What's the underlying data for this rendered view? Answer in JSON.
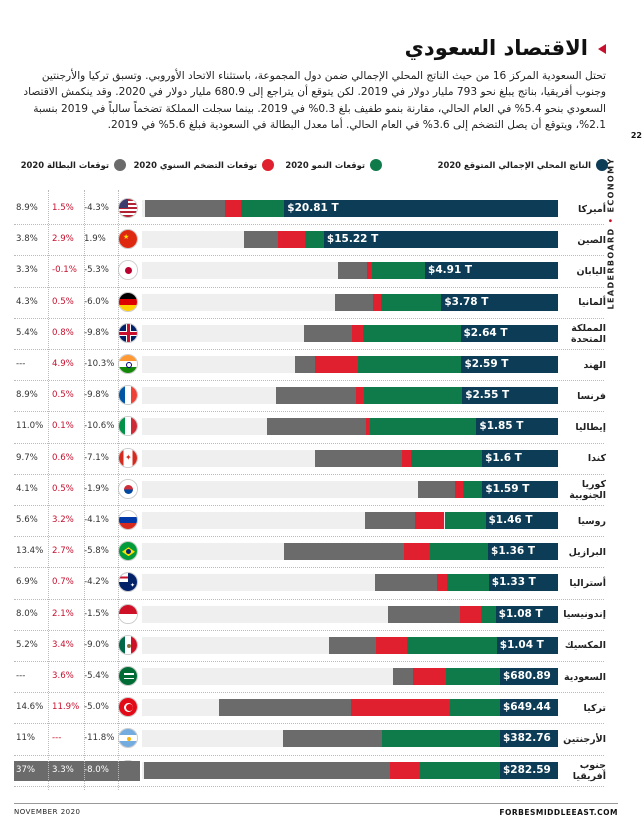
{
  "page": {
    "title": "الاقتصاد السعودي",
    "intro": "تحتل السعودية المركز 16 من حيث الناتج المحلي الإجمالي ضمن دول المجموعة، باستثناء الاتحاد الأوروبي. وتسبق تركيا والأرجنتين وجنوب أفريقيا، بناتج يبلغ نحو 793 مليار دولار في 2019. لكن يتوقع أن يتراجع إلى 680.9 مليار دولار في 2020. وقد ينكمش الاقتصاد السعودي بنحو 5.4% في العام الحالي، مقارنة بنمو طفيف بلغ 0.3% في 2019. بينما سجلت المملكة تضخماً سالباً في 2019 بنسبة 2.1%، ويتوقع أن يصل التضخم إلى 3.6% في العام الحالي. أما معدل البطالة في السعودية فبلغ 5.6% في 2019.",
    "page_number": "22",
    "side_label_left": "LEADERBOARD",
    "side_label_sep": "•",
    "side_label_right": "ECONOMY",
    "footer_left": "NOVEMBER 2020",
    "footer_right": "FORBESMIDDLEEAST.COM"
  },
  "legend": {
    "gdp": "الناتج المحلي الإجمالي المتوقع 2020",
    "growth": "توقعات النمو 2020",
    "inflation": "توقعات التضخم السنوي 2020",
    "unemployment": "توقعات البطالة 2020"
  },
  "colors": {
    "gdp": "#0d3d56",
    "growth": "#0f7a4a",
    "inflation": "#e0202f",
    "unemployment": "#6b6b6b",
    "accent": "#c8102e"
  },
  "chart_data": {
    "type": "bar",
    "columns": [
      "الناتج المحلي الإجمالي المتوقع 2020",
      "توقعات النمو 2020",
      "توقعات التضخم السنوي 2020",
      "توقعات البطالة 2020"
    ],
    "rows": [
      {
        "country": "أميركا",
        "flag": "us-flag-icon",
        "gdp": "$20.81 T",
        "growth": "-4.3%",
        "inflation": "1.5%",
        "unemployment": "8.9%"
      },
      {
        "country": "الصين",
        "flag": "china-flag-icon",
        "gdp": "$15.22 T",
        "growth": "1.9%",
        "inflation": "2.9%",
        "unemployment": "3.8%"
      },
      {
        "country": "اليابان",
        "flag": "japan-flag-icon",
        "gdp": "$4.91 T",
        "growth": "-5.3%",
        "inflation": "-0.1%",
        "unemployment": "3.3%"
      },
      {
        "country": "ألمانيا",
        "flag": "germany-flag-icon",
        "gdp": "$3.78 T",
        "growth": "-6.0%",
        "inflation": "0.5%",
        "unemployment": "4.3%"
      },
      {
        "country": "المملكة المتحدة",
        "flag": "uk-flag-icon",
        "gdp": "$2.64 T",
        "growth": "-9.8%",
        "inflation": "0.8%",
        "unemployment": "5.4%"
      },
      {
        "country": "الهند",
        "flag": "india-flag-icon",
        "gdp": "$2.59 T",
        "growth": "-10.3%",
        "inflation": "4.9%",
        "unemployment": "---"
      },
      {
        "country": "فرنسا",
        "flag": "france-flag-icon",
        "gdp": "$2.55 T",
        "growth": "-9.8%",
        "inflation": "0.5%",
        "unemployment": "8.9%"
      },
      {
        "country": "إيطاليا",
        "flag": "italy-flag-icon",
        "gdp": "$1.85 T",
        "growth": "-10.6%",
        "inflation": "0.1%",
        "unemployment": "11.0%"
      },
      {
        "country": "كندا",
        "flag": "canada-flag-icon",
        "gdp": "$1.6 T",
        "growth": "-7.1%",
        "inflation": "0.6%",
        "unemployment": "9.7%"
      },
      {
        "country": "كوريا الجنوبية",
        "flag": "korea-flag-icon",
        "gdp": "$1.59 T",
        "growth": "-1.9%",
        "inflation": "0.5%",
        "unemployment": "4.1%"
      },
      {
        "country": "روسيا",
        "flag": "russia-flag-icon",
        "gdp": "$1.46 T",
        "growth": "-4.1%",
        "inflation": "3.2%",
        "unemployment": "5.6%"
      },
      {
        "country": "البرازيل",
        "flag": "brazil-flag-icon",
        "gdp": "$1.36 T",
        "growth": "-5.8%",
        "inflation": "2.7%",
        "unemployment": "13.4%"
      },
      {
        "country": "أستراليا",
        "flag": "australia-flag-icon",
        "gdp": "$1.33 T",
        "growth": "-4.2%",
        "inflation": "0.7%",
        "unemployment": "6.9%"
      },
      {
        "country": "إندونيسيا",
        "flag": "indonesia-flag-icon",
        "gdp": "$1.08 T",
        "growth": "-1.5%",
        "inflation": "2.1%",
        "unemployment": "8.0%"
      },
      {
        "country": "المكسيك",
        "flag": "mexico-flag-icon",
        "gdp": "$1.04 T",
        "growth": "-9.0%",
        "inflation": "3.4%",
        "unemployment": "5.2%"
      },
      {
        "country": "السعودية",
        "flag": "saudi-flag-icon",
        "gdp": "$680.89 B",
        "growth": "-5.4%",
        "inflation": "3.6%",
        "unemployment": "---"
      },
      {
        "country": "تركيا",
        "flag": "turkey-flag-icon",
        "gdp": "$649.44 B",
        "growth": "-5.0%",
        "inflation": "11.9%",
        "unemployment": "14.6%"
      },
      {
        "country": "الأرجنتين",
        "flag": "argentina-flag-icon",
        "gdp": "$382.76 B",
        "growth": "-11.8%",
        "inflation": "---",
        "unemployment": "11%"
      },
      {
        "country": "جنوب أفريقيا",
        "flag": "south-africa-flag-icon",
        "gdp": "$282.59 B",
        "growth": "-8.0%",
        "inflation": "3.3%",
        "unemployment": "37%"
      }
    ]
  }
}
